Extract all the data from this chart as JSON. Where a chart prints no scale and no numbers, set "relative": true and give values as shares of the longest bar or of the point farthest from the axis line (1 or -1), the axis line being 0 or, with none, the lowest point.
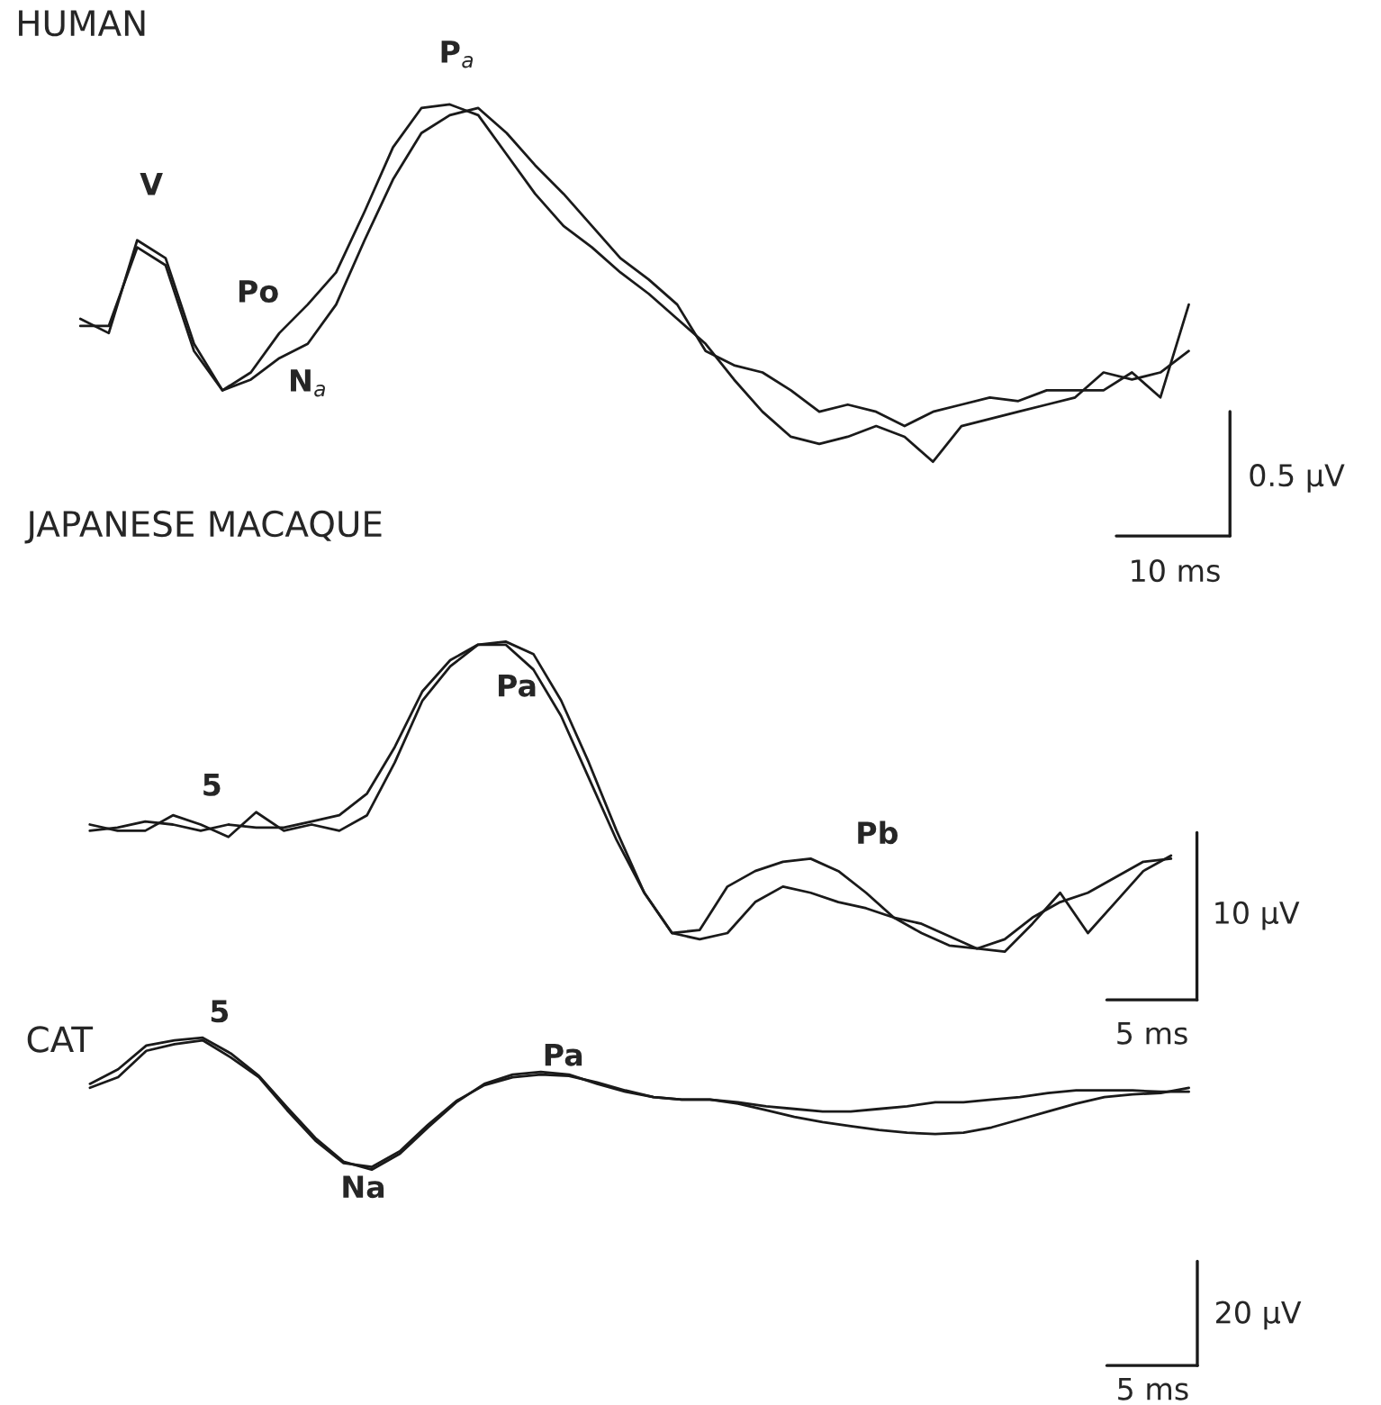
{
  "chart_data": [
    {
      "type": "line",
      "title": "HUMAN",
      "relative": true,
      "categories": [
        null,
        null,
        null,
        null,
        null,
        null,
        null,
        null,
        null,
        null,
        null,
        null,
        null,
        null,
        null,
        null,
        null,
        null,
        null,
        null,
        null,
        null,
        null,
        null,
        null,
        null,
        null,
        null,
        null,
        null,
        null,
        null,
        null,
        null,
        null,
        null,
        null,
        null,
        null,
        null
      ],
      "series": [
        {
          "color": "#1a1a1a",
          "values": [
            0.4,
            0.36,
            0.62,
            0.57,
            0.33,
            0.2,
            0.25,
            0.36,
            0.44,
            0.53,
            0.7,
            0.88,
            0.99,
            1.0,
            0.97,
            0.86,
            0.75,
            0.66,
            0.6,
            0.53,
            0.47,
            0.4,
            0.33,
            0.23,
            0.14,
            0.07,
            0.05,
            0.07,
            0.1,
            0.07,
            0.0,
            0.1,
            0.12,
            0.14,
            0.16,
            0.18,
            0.25,
            0.23,
            0.25,
            0.31
          ]
        },
        {
          "color": "#1a1a1a",
          "values": [
            0.38,
            0.38,
            0.6,
            0.55,
            0.31,
            0.2,
            0.23,
            0.29,
            0.33,
            0.44,
            0.62,
            0.79,
            0.92,
            0.97,
            0.99,
            0.92,
            0.83,
            0.75,
            0.66,
            0.57,
            0.51,
            0.44,
            0.31,
            0.27,
            0.25,
            0.2,
            0.14,
            0.16,
            0.14,
            0.1,
            0.14,
            0.16,
            0.18,
            0.17,
            0.2,
            0.2,
            0.2,
            0.25,
            0.18,
            0.44
          ]
        }
      ],
      "annotations": [
        "V",
        "Po",
        "N$_{a}$",
        "P$_{a}$",
        "0.5 µV",
        "10 ms"
      ]
    },
    {
      "type": "line",
      "title": "JAPANESE MACAQUE",
      "relative": true,
      "categories": [
        null,
        null,
        null,
        null,
        null,
        null,
        null,
        null,
        null,
        null,
        null,
        null,
        null,
        null,
        null,
        null,
        null,
        null,
        null,
        null,
        null,
        null,
        null,
        null,
        null,
        null,
        null,
        null,
        null,
        null,
        null,
        null,
        null,
        null,
        null,
        null,
        null,
        null,
        null,
        null
      ],
      "series": [
        {
          "color": "#1a1a1a",
          "values": [
            0.39,
            0.4,
            0.42,
            0.41,
            0.39,
            0.41,
            0.4,
            0.4,
            0.42,
            0.44,
            0.51,
            0.66,
            0.84,
            0.94,
            0.99,
            0.99,
            0.91,
            0.76,
            0.56,
            0.36,
            0.19,
            0.06,
            0.07,
            0.21,
            0.26,
            0.29,
            0.3,
            0.26,
            0.19,
            0.11,
            0.06,
            0.02,
            0.01,
            0.04,
            0.11,
            0.16,
            0.19,
            0.24,
            0.29,
            0.3
          ]
        },
        {
          "color": "#1a1a1a",
          "values": [
            0.41,
            0.39,
            0.39,
            0.44,
            0.41,
            0.37,
            0.45,
            0.39,
            0.41,
            0.39,
            0.44,
            0.61,
            0.81,
            0.92,
            0.99,
            1.0,
            0.96,
            0.81,
            0.61,
            0.39,
            0.19,
            0.06,
            0.04,
            0.06,
            0.16,
            0.21,
            0.19,
            0.16,
            0.14,
            0.11,
            0.09,
            0.05,
            0.01,
            0.0,
            0.09,
            0.19,
            0.06,
            0.16,
            0.26,
            0.31
          ]
        }
      ],
      "annotations": [
        "5",
        "Pa",
        "Pb",
        "10 µV",
        "5 ms"
      ]
    },
    {
      "type": "line",
      "title": "CAT",
      "relative": true,
      "categories": [
        null,
        null,
        null,
        null,
        null,
        null,
        null,
        null,
        null,
        null,
        null,
        null,
        null,
        null,
        null,
        null,
        null,
        null,
        null,
        null,
        null,
        null,
        null,
        null,
        null,
        null,
        null,
        null,
        null,
        null,
        null,
        null,
        null,
        null,
        null,
        null,
        null,
        null,
        null,
        null
      ],
      "series": [
        {
          "color": "#1a1a1a",
          "values": [
            0.65,
            0.76,
            0.94,
            0.98,
            1.0,
            0.88,
            0.71,
            0.47,
            0.24,
            0.06,
            0.0,
            0.12,
            0.32,
            0.51,
            0.65,
            0.72,
            0.74,
            0.72,
            0.65,
            0.59,
            0.55,
            0.53,
            0.53,
            0.51,
            0.48,
            0.46,
            0.44,
            0.44,
            0.46,
            0.48,
            0.51,
            0.51,
            0.53,
            0.55,
            0.58,
            0.6,
            0.6,
            0.6,
            0.59,
            0.59
          ]
        },
        {
          "color": "#1a1a1a",
          "values": [
            0.62,
            0.7,
            0.9,
            0.95,
            0.98,
            0.85,
            0.7,
            0.45,
            0.22,
            0.05,
            0.02,
            0.14,
            0.34,
            0.52,
            0.64,
            0.7,
            0.72,
            0.71,
            0.66,
            0.6,
            0.55,
            0.53,
            0.53,
            0.5,
            0.45,
            0.4,
            0.36,
            0.33,
            0.3,
            0.28,
            0.27,
            0.28,
            0.32,
            0.38,
            0.44,
            0.5,
            0.55,
            0.57,
            0.58,
            0.62
          ]
        }
      ],
      "annotations": [
        "5",
        "Pa",
        "Na",
        "20 µV",
        "5 ms"
      ]
    }
  ]
}
